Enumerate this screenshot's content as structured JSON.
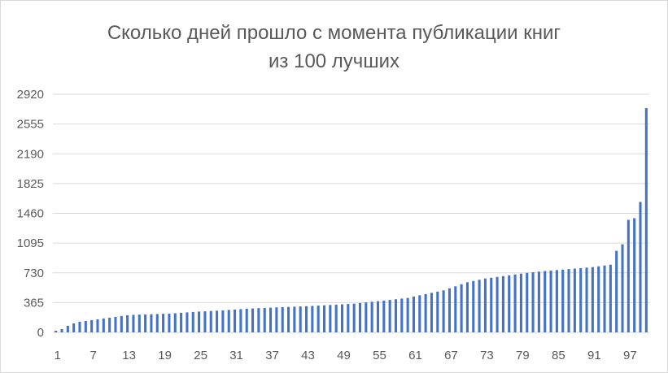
{
  "chart_data": {
    "type": "bar",
    "title_lines": [
      "Сколько дней прошло с момента публикации книг",
      "из 100 лучших"
    ],
    "xlabel": "",
    "ylabel": "",
    "ylim": [
      0,
      2920
    ],
    "y_ticks": [
      0,
      365,
      730,
      1095,
      1460,
      1825,
      2190,
      2555,
      2920
    ],
    "x_tick_labels": [
      "1",
      "7",
      "13",
      "19",
      "25",
      "31",
      "37",
      "43",
      "49",
      "55",
      "61",
      "67",
      "73",
      "79",
      "85",
      "91",
      "97"
    ],
    "x_tick_every": 6,
    "grid": true,
    "legend": "none",
    "bar_color": "#4472c4",
    "categories": [
      1,
      2,
      3,
      4,
      5,
      6,
      7,
      8,
      9,
      10,
      11,
      12,
      13,
      14,
      15,
      16,
      17,
      18,
      19,
      20,
      21,
      22,
      23,
      24,
      25,
      26,
      27,
      28,
      29,
      30,
      31,
      32,
      33,
      34,
      35,
      36,
      37,
      38,
      39,
      40,
      41,
      42,
      43,
      44,
      45,
      46,
      47,
      48,
      49,
      50,
      51,
      52,
      53,
      54,
      55,
      56,
      57,
      58,
      59,
      60,
      61,
      62,
      63,
      64,
      65,
      66,
      67,
      68,
      69,
      70,
      71,
      72,
      73,
      74,
      75,
      76,
      77,
      78,
      79,
      80,
      81,
      82,
      83,
      84,
      85,
      86,
      87,
      88,
      89,
      90,
      91,
      92,
      93,
      94,
      95,
      96,
      97,
      98,
      99,
      100
    ],
    "values": [
      20,
      40,
      80,
      110,
      130,
      140,
      150,
      160,
      170,
      180,
      190,
      200,
      210,
      215,
      218,
      220,
      222,
      225,
      228,
      230,
      235,
      240,
      245,
      250,
      255,
      258,
      262,
      266,
      270,
      275,
      280,
      285,
      290,
      293,
      297,
      300,
      303,
      306,
      309,
      312,
      315,
      318,
      321,
      324,
      328,
      332,
      336,
      340,
      344,
      348,
      352,
      360,
      368,
      375,
      382,
      390,
      398,
      406,
      414,
      422,
      440,
      455,
      470,
      485,
      500,
      515,
      540,
      565,
      590,
      615,
      630,
      645,
      660,
      670,
      680,
      690,
      700,
      710,
      720,
      730,
      738,
      745,
      752,
      758,
      764,
      770,
      776,
      782,
      788,
      794,
      800,
      810,
      820,
      830,
      1000,
      1080,
      1380,
      1400,
      1600,
      2750
    ]
  }
}
